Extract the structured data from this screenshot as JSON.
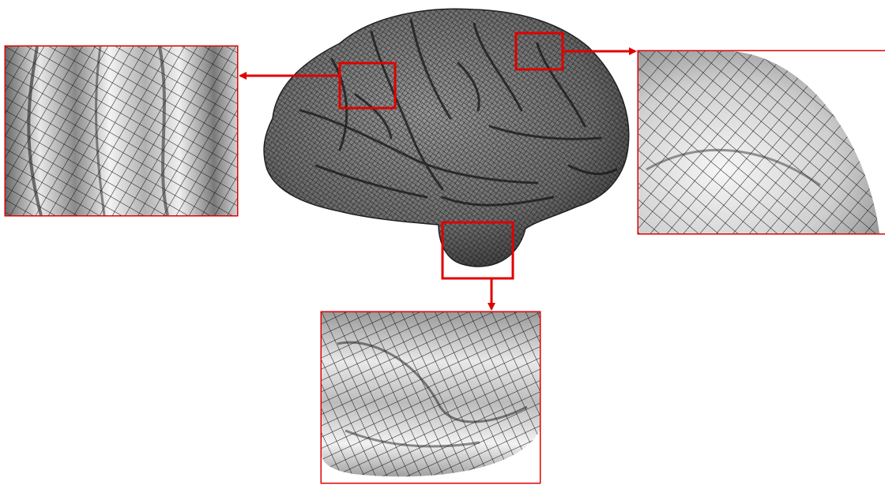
{
  "figure": {
    "mesh_type": "quadrilateral surface mesh",
    "subject": "brain-cortex-lateral-view",
    "zoom_panel_count": 3,
    "zoom_regions": [
      "frontal-gyri-patch",
      "parietal-edge-patch",
      "temporal-lobe-patch"
    ]
  },
  "colors": {
    "highlight": "#e00000",
    "mesh_line": "#1a1a1a",
    "surface_light": "#f2f2f2",
    "surface_dark": "#5a5a5a",
    "background": "#ffffff"
  },
  "icons": {
    "connector": "arrow-icon"
  }
}
